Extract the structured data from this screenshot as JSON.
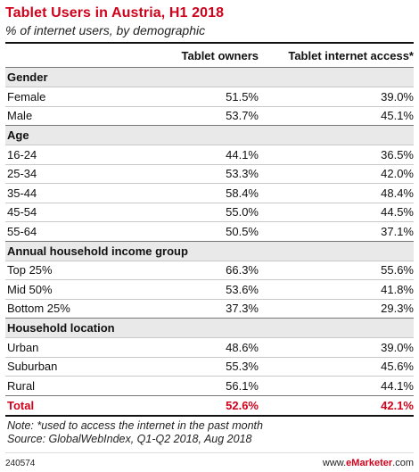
{
  "title": "Tablet Users in Austria, H1 2018",
  "subtitle": "% of internet users, by demographic",
  "columns": [
    "Tablet owners",
    "Tablet internet access*"
  ],
  "sections": [
    {
      "name": "Gender",
      "rows": [
        {
          "label": "Female",
          "owners": "51.5%",
          "access": "39.0%"
        },
        {
          "label": "Male",
          "owners": "53.7%",
          "access": "45.1%"
        }
      ]
    },
    {
      "name": "Age",
      "rows": [
        {
          "label": "16-24",
          "owners": "44.1%",
          "access": "36.5%"
        },
        {
          "label": "25-34",
          "owners": "53.3%",
          "access": "42.0%"
        },
        {
          "label": "35-44",
          "owners": "58.4%",
          "access": "48.4%"
        },
        {
          "label": "45-54",
          "owners": "55.0%",
          "access": "44.5%"
        },
        {
          "label": "55-64",
          "owners": "50.5%",
          "access": "37.1%"
        }
      ]
    },
    {
      "name": "Annual household income group",
      "rows": [
        {
          "label": "Top 25%",
          "owners": "66.3%",
          "access": "55.6%"
        },
        {
          "label": "Mid 50%",
          "owners": "53.6%",
          "access": "41.8%"
        },
        {
          "label": "Bottom 25%",
          "owners": "37.3%",
          "access": "29.3%"
        }
      ]
    },
    {
      "name": "Household location",
      "rows": [
        {
          "label": "Urban",
          "owners": "48.6%",
          "access": "39.0%"
        },
        {
          "label": "Suburban",
          "owners": "55.3%",
          "access": "45.6%"
        },
        {
          "label": "Rural",
          "owners": "56.1%",
          "access": "44.1%"
        }
      ]
    }
  ],
  "total": {
    "label": "Total",
    "owners": "52.6%",
    "access": "42.1%"
  },
  "note": "Note: *used to access the internet in the past month",
  "source": "Source: GlobalWebIndex, Q1-Q2 2018, Aug 2018",
  "footer": {
    "id": "240574",
    "brand_prefix": "www.",
    "brand_name": "eMarketer",
    "brand_suffix": ".com"
  },
  "colors": {
    "accent": "#d0021b",
    "section_bg": "#e9e9e9"
  }
}
